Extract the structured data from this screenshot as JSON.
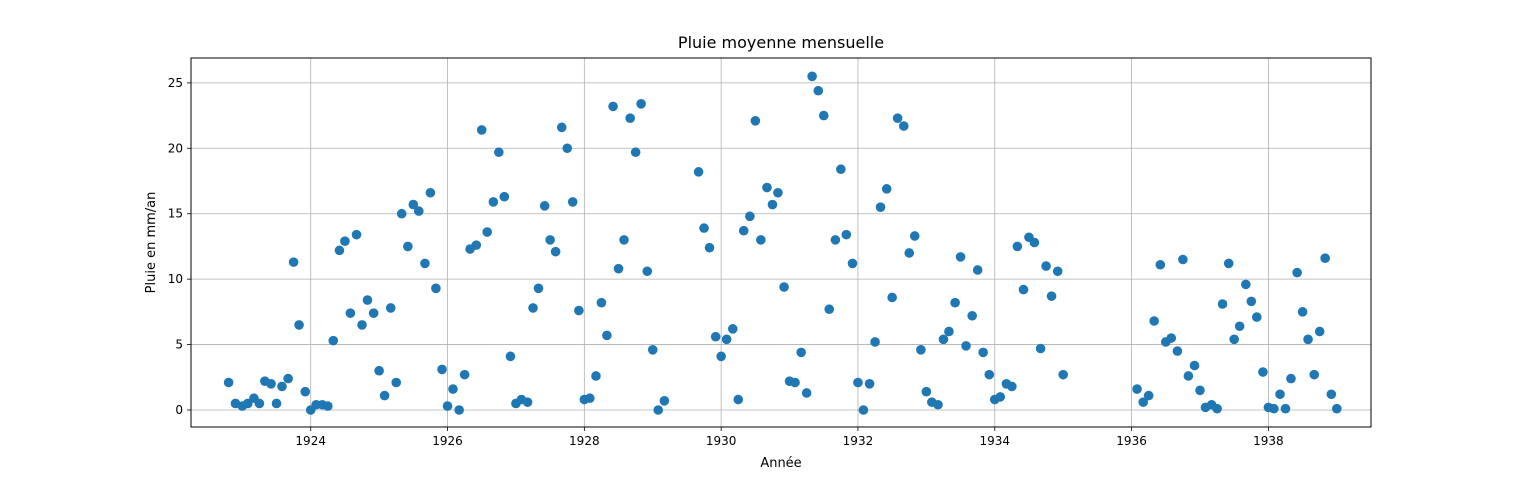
{
  "chart_data": {
    "type": "scatter",
    "title": "Pluie moyenne mensuelle",
    "xlabel": "Année",
    "ylabel": "Pluie en mm/an",
    "xlim": [
      1922.25,
      1939.5
    ],
    "ylim": [
      -1.3,
      26.9
    ],
    "grid": true,
    "marker_color": "#1f77b4",
    "x_ticks": [
      1924,
      1926,
      1928,
      1930,
      1932,
      1934,
      1936,
      1938
    ],
    "y_ticks": [
      0,
      5,
      10,
      15,
      20,
      25
    ],
    "points": [
      [
        1922.8,
        2.1
      ],
      [
        1922.9,
        0.5
      ],
      [
        1923.0,
        0.3
      ],
      [
        1923.08,
        0.5
      ],
      [
        1923.17,
        0.9
      ],
      [
        1923.25,
        0.5
      ],
      [
        1923.33,
        2.2
      ],
      [
        1923.42,
        2.0
      ],
      [
        1923.5,
        0.5
      ],
      [
        1923.58,
        1.8
      ],
      [
        1923.67,
        2.4
      ],
      [
        1923.75,
        11.3
      ],
      [
        1923.83,
        6.5
      ],
      [
        1923.92,
        1.4
      ],
      [
        1924.0,
        0.0
      ],
      [
        1924.08,
        0.4
      ],
      [
        1924.17,
        0.4
      ],
      [
        1924.25,
        0.3
      ],
      [
        1924.33,
        5.3
      ],
      [
        1924.42,
        12.2
      ],
      [
        1924.5,
        12.9
      ],
      [
        1924.58,
        7.4
      ],
      [
        1924.67,
        13.4
      ],
      [
        1924.75,
        6.5
      ],
      [
        1924.83,
        8.4
      ],
      [
        1924.92,
        7.4
      ],
      [
        1925.0,
        3.0
      ],
      [
        1925.08,
        1.1
      ],
      [
        1925.17,
        7.8
      ],
      [
        1925.25,
        2.1
      ],
      [
        1925.33,
        15.0
      ],
      [
        1925.42,
        12.5
      ],
      [
        1925.5,
        15.7
      ],
      [
        1925.58,
        15.2
      ],
      [
        1925.67,
        11.2
      ],
      [
        1925.75,
        16.6
      ],
      [
        1925.83,
        9.3
      ],
      [
        1925.92,
        3.1
      ],
      [
        1926.0,
        0.3
      ],
      [
        1926.08,
        1.6
      ],
      [
        1926.17,
        0.0
      ],
      [
        1926.25,
        2.7
      ],
      [
        1926.33,
        12.3
      ],
      [
        1926.42,
        12.6
      ],
      [
        1926.5,
        21.4
      ],
      [
        1926.58,
        13.6
      ],
      [
        1926.67,
        15.9
      ],
      [
        1926.75,
        19.7
      ],
      [
        1926.83,
        16.3
      ],
      [
        1926.92,
        4.1
      ],
      [
        1927.0,
        0.5
      ],
      [
        1927.08,
        0.8
      ],
      [
        1927.17,
        0.6
      ],
      [
        1927.25,
        7.8
      ],
      [
        1927.33,
        9.3
      ],
      [
        1927.42,
        15.6
      ],
      [
        1927.5,
        13.0
      ],
      [
        1927.58,
        12.1
      ],
      [
        1927.67,
        21.6
      ],
      [
        1927.75,
        20.0
      ],
      [
        1927.83,
        15.9
      ],
      [
        1927.92,
        7.6
      ],
      [
        1928.0,
        0.8
      ],
      [
        1928.08,
        0.9
      ],
      [
        1928.17,
        2.6
      ],
      [
        1928.25,
        8.2
      ],
      [
        1928.33,
        5.7
      ],
      [
        1928.42,
        23.2
      ],
      [
        1928.5,
        10.8
      ],
      [
        1928.58,
        13.0
      ],
      [
        1928.67,
        22.3
      ],
      [
        1928.75,
        19.7
      ],
      [
        1928.83,
        23.4
      ],
      [
        1928.92,
        10.6
      ],
      [
        1929.0,
        4.6
      ],
      [
        1929.08,
        0.0
      ],
      [
        1929.17,
        0.7
      ],
      [
        1929.67,
        18.2
      ],
      [
        1929.75,
        13.9
      ],
      [
        1929.83,
        12.4
      ],
      [
        1929.92,
        5.6
      ],
      [
        1930.0,
        4.1
      ],
      [
        1930.08,
        5.4
      ],
      [
        1930.17,
        6.2
      ],
      [
        1930.25,
        0.8
      ],
      [
        1930.33,
        13.7
      ],
      [
        1930.42,
        14.8
      ],
      [
        1930.5,
        22.1
      ],
      [
        1930.58,
        13.0
      ],
      [
        1930.67,
        17.0
      ],
      [
        1930.75,
        15.7
      ],
      [
        1930.83,
        16.6
      ],
      [
        1930.92,
        9.4
      ],
      [
        1931.0,
        2.2
      ],
      [
        1931.08,
        2.1
      ],
      [
        1931.17,
        4.4
      ],
      [
        1931.25,
        1.3
      ],
      [
        1931.33,
        25.5
      ],
      [
        1931.42,
        24.4
      ],
      [
        1931.5,
        22.5
      ],
      [
        1931.58,
        7.7
      ],
      [
        1931.67,
        13.0
      ],
      [
        1931.75,
        18.4
      ],
      [
        1931.83,
        13.4
      ],
      [
        1931.92,
        11.2
      ],
      [
        1932.0,
        2.1
      ],
      [
        1932.08,
        0.0
      ],
      [
        1932.17,
        2.0
      ],
      [
        1932.25,
        5.2
      ],
      [
        1932.33,
        15.5
      ],
      [
        1932.42,
        16.9
      ],
      [
        1932.5,
        8.6
      ],
      [
        1932.58,
        22.3
      ],
      [
        1932.67,
        21.7
      ],
      [
        1932.75,
        12.0
      ],
      [
        1932.83,
        13.3
      ],
      [
        1932.92,
        4.6
      ],
      [
        1933.0,
        1.4
      ],
      [
        1933.08,
        0.6
      ],
      [
        1933.17,
        0.4
      ],
      [
        1933.25,
        5.4
      ],
      [
        1933.33,
        6.0
      ],
      [
        1933.42,
        8.2
      ],
      [
        1933.5,
        11.7
      ],
      [
        1933.58,
        4.9
      ],
      [
        1933.67,
        7.2
      ],
      [
        1933.75,
        10.7
      ],
      [
        1933.83,
        4.4
      ],
      [
        1933.92,
        2.7
      ],
      [
        1934.0,
        0.8
      ],
      [
        1934.08,
        1.0
      ],
      [
        1934.17,
        2.0
      ],
      [
        1934.25,
        1.8
      ],
      [
        1934.33,
        12.5
      ],
      [
        1934.42,
        9.2
      ],
      [
        1934.5,
        13.2
      ],
      [
        1934.58,
        12.8
      ],
      [
        1934.67,
        4.7
      ],
      [
        1934.75,
        11.0
      ],
      [
        1934.83,
        8.7
      ],
      [
        1934.92,
        10.6
      ],
      [
        1935.0,
        2.7
      ],
      [
        1936.08,
        1.6
      ],
      [
        1936.17,
        0.6
      ],
      [
        1936.25,
        1.1
      ],
      [
        1936.33,
        6.8
      ],
      [
        1936.42,
        11.1
      ],
      [
        1936.5,
        5.2
      ],
      [
        1936.58,
        5.5
      ],
      [
        1936.67,
        4.5
      ],
      [
        1936.75,
        11.5
      ],
      [
        1936.83,
        2.6
      ],
      [
        1936.92,
        3.4
      ],
      [
        1937.0,
        1.5
      ],
      [
        1937.08,
        0.2
      ],
      [
        1937.17,
        0.4
      ],
      [
        1937.25,
        0.1
      ],
      [
        1937.33,
        8.1
      ],
      [
        1937.42,
        11.2
      ],
      [
        1937.5,
        5.4
      ],
      [
        1937.58,
        6.4
      ],
      [
        1937.67,
        9.6
      ],
      [
        1937.75,
        8.3
      ],
      [
        1937.83,
        7.1
      ],
      [
        1937.92,
        2.9
      ],
      [
        1938.0,
        0.2
      ],
      [
        1938.08,
        0.1
      ],
      [
        1938.17,
        1.2
      ],
      [
        1938.25,
        0.1
      ],
      [
        1938.33,
        2.4
      ],
      [
        1938.42,
        10.5
      ],
      [
        1938.5,
        7.5
      ],
      [
        1938.58,
        5.4
      ],
      [
        1938.67,
        2.7
      ],
      [
        1938.75,
        6.0
      ],
      [
        1938.83,
        11.6
      ],
      [
        1938.92,
        1.2
      ],
      [
        1939.0,
        0.1
      ]
    ]
  }
}
